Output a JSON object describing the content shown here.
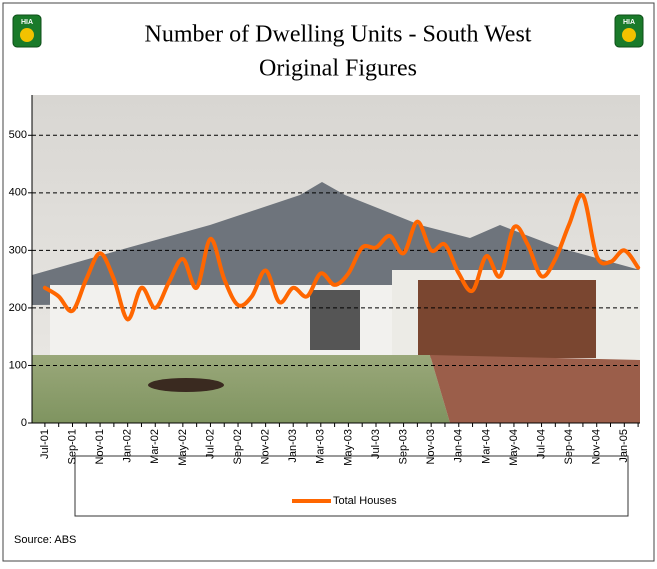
{
  "chart_data": {
    "type": "line",
    "title": "Number of Dwelling Units - South West",
    "subtitle": "Original Figures",
    "logo_text": "HIA",
    "source": "Source: ABS",
    "categories": [
      "Jul-01",
      null,
      "Sep-01",
      null,
      "Nov-01",
      null,
      "Jan-02",
      null,
      "Mar-02",
      null,
      "May-02",
      null,
      "Jul-02",
      null,
      "Sep-02",
      null,
      "Nov-02",
      null,
      "Jan-03",
      null,
      "Mar-03",
      null,
      "May-03",
      null,
      "Jul-03",
      null,
      "Sep-03",
      null,
      "Nov-03",
      null,
      "Jan-04",
      null,
      "Mar-04",
      null,
      "May-04",
      null,
      "Jul-04",
      null,
      "Sep-04",
      null,
      "Nov-04",
      null,
      "Jan-05",
      null
    ],
    "series": [
      {
        "name": "Total Houses",
        "color": "#ff6600",
        "values": [
          235,
          220,
          195,
          250,
          295,
          250,
          180,
          235,
          200,
          245,
          285,
          235,
          320,
          250,
          205,
          220,
          265,
          210,
          235,
          220,
          260,
          240,
          260,
          305,
          305,
          325,
          295,
          350,
          300,
          310,
          260,
          230,
          290,
          255,
          340,
          310,
          255,
          285,
          345,
          395,
          290,
          280,
          300,
          270
        ]
      }
    ],
    "ylim": [
      0,
      570
    ],
    "yticks": [
      0,
      100,
      200,
      300,
      400,
      500
    ],
    "grid": true
  }
}
